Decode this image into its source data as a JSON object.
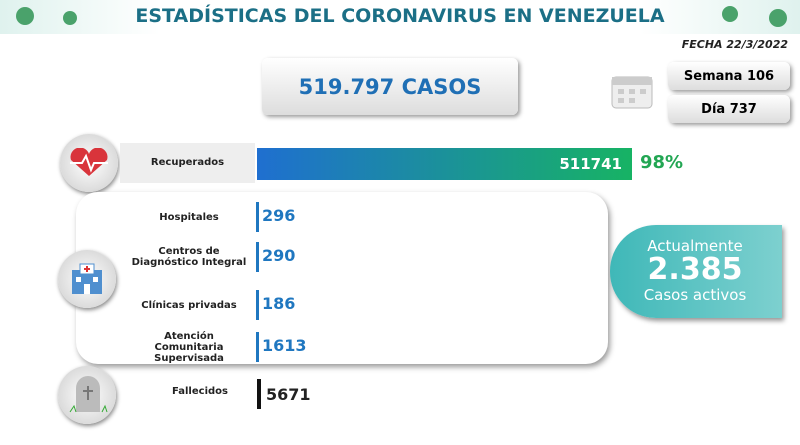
{
  "header": {
    "title": "ESTADÍSTICAS DEL CORONAVIRUS EN VENEZUELA",
    "date": "FECHA 22/3/2022"
  },
  "summary": {
    "cases": "519.797 CASOS",
    "week": "Semana 106",
    "day": "Día 737"
  },
  "recovered": {
    "label": "Recuperados",
    "value": 511741,
    "percent_label": "98%"
  },
  "active_breakdown": [
    {
      "label": "Hospitales",
      "value": 296
    },
    {
      "label": "Centros de Diagnóstico Integral",
      "value": 290
    },
    {
      "label": "Clínicas privadas",
      "value": 186
    },
    {
      "label": "Atención Comunitaria Supervisada",
      "value": 1613
    }
  ],
  "active": {
    "heading": "Actualmente",
    "value": "2.385",
    "caption": "Casos activos"
  },
  "deaths": {
    "label": "Fallecidos",
    "value": 5671
  }
}
